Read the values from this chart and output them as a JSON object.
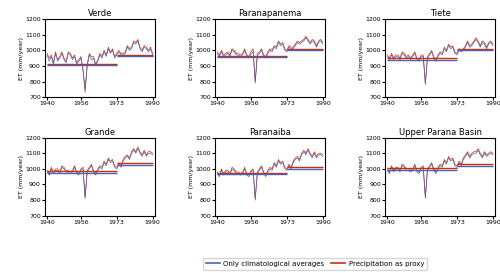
{
  "titles": [
    "Verde",
    "Paranapanema",
    "Tiete",
    "Grande",
    "Paranaiba",
    "Upper Parana Basin"
  ],
  "xlim": [
    1939,
    1991
  ],
  "xticks": [
    1940,
    1956,
    1973,
    1990
  ],
  "ylim": [
    700,
    1200
  ],
  "yticks": [
    700,
    800,
    900,
    1000,
    1100,
    1200
  ],
  "ylabel": "ET (mm/year)",
  "blue_color": "#5060b0",
  "red_color": "#c83010",
  "legend_labels": [
    "Only climatological averages",
    "Precipitation as proxy"
  ],
  "split_year": 1973,
  "verde_blue": [
    970,
    930,
    960,
    910,
    980,
    930,
    950,
    980,
    940,
    920,
    980,
    970,
    940,
    960,
    910,
    930,
    950,
    870,
    750,
    900,
    970,
    940,
    950,
    900,
    930,
    970,
    950,
    990,
    960,
    1010,
    980,
    1000,
    950,
    970,
    990,
    970,
    970,
    980,
    1020,
    1000,
    1010,
    1050,
    1040,
    1060,
    1010,
    990,
    1020,
    1010,
    990,
    1010,
    970
  ],
  "verde_red": [
    980,
    950,
    970,
    920,
    990,
    940,
    960,
    990,
    950,
    930,
    990,
    980,
    950,
    970,
    920,
    940,
    960,
    880,
    730,
    910,
    980,
    960,
    960,
    910,
    940,
    980,
    960,
    1000,
    970,
    1020,
    990,
    1010,
    960,
    980,
    1000,
    980,
    980,
    990,
    1030,
    1010,
    1020,
    1060,
    1050,
    1070,
    1020,
    1000,
    1030,
    1020,
    1000,
    1020,
    980
  ],
  "verde_pre_mean_blue": 905,
  "verde_post_mean_blue": 965,
  "verde_pre_mean_red": 915,
  "verde_post_mean_red": 970,
  "parana_blue": [
    980,
    960,
    990,
    960,
    970,
    980,
    960,
    1000,
    990,
    970,
    970,
    960,
    970,
    1000,
    960,
    950,
    980,
    990,
    800,
    970,
    980,
    1000,
    960,
    950,
    980,
    1000,
    990,
    1020,
    1010,
    1050,
    1030,
    1040,
    1000,
    990,
    1020,
    1010,
    1010,
    1030,
    1050,
    1040,
    1050,
    1060,
    1080,
    1060,
    1040,
    1060,
    1050,
    1020,
    1050,
    1060,
    1040
  ],
  "parana_red": [
    990,
    970,
    1000,
    970,
    980,
    990,
    970,
    1010,
    1000,
    980,
    980,
    970,
    980,
    1010,
    970,
    960,
    990,
    1010,
    790,
    980,
    990,
    1010,
    970,
    960,
    990,
    1010,
    1000,
    1030,
    1020,
    1060,
    1040,
    1050,
    1010,
    1000,
    1030,
    1020,
    1020,
    1040,
    1060,
    1050,
    1060,
    1070,
    1090,
    1070,
    1050,
    1070,
    1060,
    1030,
    1060,
    1070,
    1050
  ],
  "parana_pre_mean_blue": 955,
  "parana_post_mean_blue": 1000,
  "parana_pre_mean_red": 965,
  "parana_post_mean_red": 1010,
  "tiete_blue": [
    960,
    940,
    970,
    940,
    960,
    960,
    940,
    980,
    970,
    950,
    960,
    940,
    960,
    980,
    940,
    930,
    960,
    960,
    790,
    950,
    970,
    990,
    950,
    930,
    960,
    980,
    970,
    1010,
    990,
    1030,
    1010,
    1020,
    980,
    970,
    1000,
    990,
    1000,
    1020,
    1050,
    1020,
    1030,
    1050,
    1070,
    1050,
    1020,
    1050,
    1040,
    1010,
    1040,
    1050,
    1030
  ],
  "tiete_red": [
    970,
    950,
    980,
    950,
    970,
    970,
    950,
    990,
    980,
    960,
    970,
    950,
    970,
    990,
    950,
    940,
    970,
    970,
    780,
    960,
    980,
    1000,
    960,
    940,
    970,
    990,
    980,
    1020,
    1000,
    1040,
    1020,
    1030,
    990,
    980,
    1010,
    1000,
    1010,
    1030,
    1060,
    1030,
    1040,
    1060,
    1080,
    1060,
    1030,
    1060,
    1050,
    1020,
    1050,
    1060,
    1040
  ],
  "tiete_pre_mean_blue": 940,
  "tiete_post_mean_blue": 1000,
  "tiete_pre_mean_red": 950,
  "tiete_post_mean_red": 1010,
  "grande_blue": [
    980,
    960,
    1000,
    970,
    990,
    990,
    970,
    1010,
    1000,
    980,
    980,
    970,
    980,
    1010,
    970,
    960,
    990,
    1000,
    820,
    980,
    1000,
    1020,
    980,
    960,
    990,
    1010,
    1000,
    1040,
    1020,
    1060,
    1040,
    1050,
    1010,
    1000,
    1030,
    1010,
    1050,
    1070,
    1080,
    1060,
    1100,
    1120,
    1100,
    1130,
    1100,
    1080,
    1110,
    1080,
    1100,
    1100,
    1090
  ],
  "grande_red": [
    990,
    970,
    1010,
    980,
    1000,
    1000,
    980,
    1020,
    1010,
    990,
    990,
    980,
    990,
    1020,
    980,
    970,
    1000,
    1010,
    810,
    990,
    1010,
    1030,
    990,
    970,
    1000,
    1020,
    1010,
    1050,
    1030,
    1070,
    1050,
    1060,
    1020,
    1010,
    1040,
    1020,
    1060,
    1080,
    1090,
    1070,
    1110,
    1130,
    1110,
    1140,
    1110,
    1090,
    1120,
    1090,
    1110,
    1110,
    1100
  ],
  "grande_pre_mean_blue": 975,
  "grande_post_mean_blue": 1025,
  "grande_pre_mean_red": 985,
  "grande_post_mean_red": 1035,
  "paranaiba_blue": [
    970,
    950,
    990,
    960,
    980,
    980,
    960,
    1000,
    990,
    970,
    970,
    960,
    970,
    1000,
    960,
    950,
    980,
    990,
    810,
    970,
    990,
    1010,
    970,
    950,
    980,
    1000,
    990,
    1030,
    1010,
    1050,
    1030,
    1040,
    1000,
    990,
    1020,
    1000,
    1040,
    1060,
    1070,
    1050,
    1090,
    1110,
    1090,
    1120,
    1090,
    1070,
    1100,
    1070,
    1090,
    1090,
    1080
  ],
  "paranaiba_red": [
    980,
    960,
    1000,
    970,
    990,
    990,
    970,
    1010,
    1000,
    980,
    980,
    970,
    980,
    1010,
    970,
    960,
    990,
    1000,
    800,
    980,
    1000,
    1020,
    980,
    960,
    990,
    1010,
    1000,
    1040,
    1020,
    1060,
    1040,
    1050,
    1010,
    1000,
    1030,
    1010,
    1050,
    1070,
    1080,
    1060,
    1100,
    1120,
    1100,
    1130,
    1100,
    1080,
    1110,
    1080,
    1100,
    1100,
    1090
  ],
  "paranaiba_pre_mean_blue": 965,
  "paranaiba_post_mean_blue": 1000,
  "paranaiba_pre_mean_red": 975,
  "paranaiba_post_mean_red": 1010,
  "upper_blue": [
    990,
    970,
    1010,
    980,
    1000,
    1000,
    980,
    1020,
    1010,
    990,
    990,
    980,
    990,
    1020,
    980,
    970,
    1000,
    1010,
    820,
    990,
    1010,
    1030,
    990,
    970,
    1000,
    1020,
    1010,
    1050,
    1030,
    1070,
    1050,
    1060,
    1020,
    1010,
    1040,
    1020,
    1060,
    1080,
    1100,
    1070,
    1090,
    1100,
    1100,
    1120,
    1090,
    1070,
    1100,
    1080,
    1090,
    1100,
    1090
  ],
  "upper_red": [
    1000,
    980,
    1020,
    990,
    1010,
    1010,
    990,
    1030,
    1020,
    1000,
    1000,
    990,
    1000,
    1030,
    990,
    980,
    1010,
    1020,
    810,
    1000,
    1020,
    1040,
    1000,
    980,
    1010,
    1030,
    1020,
    1060,
    1040,
    1080,
    1060,
    1070,
    1030,
    1020,
    1050,
    1030,
    1070,
    1090,
    1110,
    1080,
    1100,
    1110,
    1110,
    1130,
    1100,
    1080,
    1110,
    1090,
    1100,
    1110,
    1100
  ],
  "upper_pre_mean_blue": 995,
  "upper_post_mean_blue": 1020,
  "upper_pre_mean_red": 1005,
  "upper_post_mean_red": 1030
}
